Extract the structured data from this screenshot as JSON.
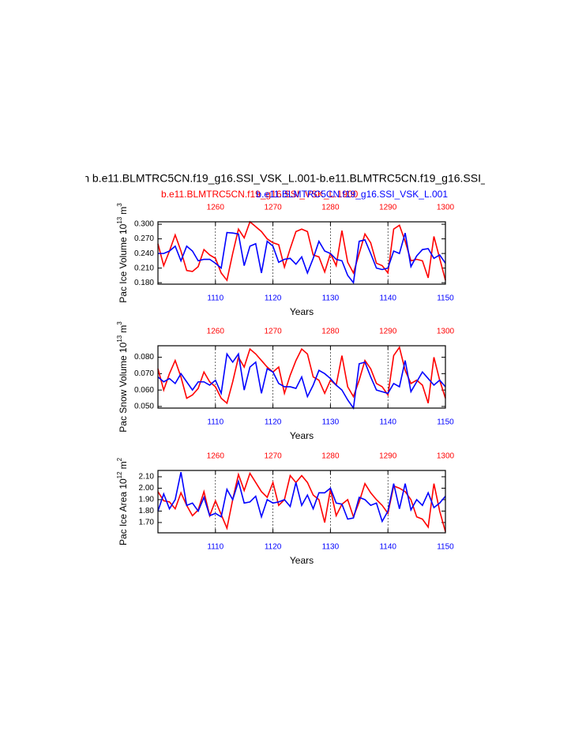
{
  "chart_data": [
    {
      "type": "line",
      "title": "n b.e11.BLMTRC5CN.f19_g16.SSI_VSK_L.001-b.e11.BLMTRC5CN.f19_g16.SSI_",
      "xlabel": "Years",
      "ylabel": {
        "text": "Pac Ice Volume 10",
        "exp": "13",
        "unit": "m",
        "unit_exp": "3"
      },
      "xlim": [
        1100,
        1150
      ],
      "xticks": [
        1110,
        1120,
        1130,
        1140,
        1150
      ],
      "x2lim": [
        1250,
        1300
      ],
      "x2ticks": [
        1260,
        1270,
        1280,
        1290,
        1300
      ],
      "ylim": [
        0.177,
        0.305
      ],
      "yticks": [
        {
          "value": 0.18,
          "label": "0.180"
        },
        {
          "value": 0.21,
          "label": "0.210"
        },
        {
          "value": 0.24,
          "label": "0.240"
        },
        {
          "value": 0.27,
          "label": "0.270"
        },
        {
          "value": 0.3,
          "label": "0.300"
        }
      ],
      "grid": "dashed",
      "x": [
        1100,
        1101,
        1102,
        1103,
        1104,
        1105,
        1106,
        1107,
        1108,
        1109,
        1110,
        1111,
        1112,
        1113,
        1114,
        1115,
        1116,
        1117,
        1118,
        1119,
        1120,
        1121,
        1122,
        1123,
        1124,
        1125,
        1126,
        1127,
        1128,
        1129,
        1130,
        1131,
        1132,
        1133,
        1134,
        1135,
        1136,
        1137,
        1138,
        1139,
        1140,
        1141,
        1142,
        1143,
        1144,
        1145,
        1146,
        1147,
        1148,
        1149,
        1150
      ],
      "x2": [
        1250,
        1251,
        1252,
        1253,
        1254,
        1255,
        1256,
        1257,
        1258,
        1259,
        1260,
        1261,
        1262,
        1263,
        1264,
        1265,
        1266,
        1267,
        1268,
        1269,
        1270,
        1271,
        1272,
        1273,
        1274,
        1275,
        1276,
        1277,
        1278,
        1279,
        1280,
        1281,
        1282,
        1283,
        1284,
        1285,
        1286,
        1287,
        1288,
        1289,
        1290,
        1291,
        1292,
        1293,
        1294,
        1295,
        1296,
        1297,
        1298,
        1299,
        1300
      ],
      "series": [
        {
          "name": "b.e11.BLMTRC5CN.f19_g16.SSI_VSK_L.1900",
          "color": "#ff0000",
          "axis": "x2",
          "values": [
            0.26,
            0.215,
            0.245,
            0.278,
            0.245,
            0.205,
            0.203,
            0.213,
            0.248,
            0.237,
            0.23,
            0.2,
            0.185,
            0.24,
            0.29,
            0.272,
            0.305,
            0.295,
            0.285,
            0.27,
            0.262,
            0.258,
            0.212,
            0.25,
            0.285,
            0.29,
            0.285,
            0.237,
            0.233,
            0.202,
            0.24,
            0.215,
            0.287,
            0.222,
            0.2,
            0.24,
            0.28,
            0.262,
            0.22,
            0.215,
            0.2,
            0.29,
            0.298,
            0.265,
            0.225,
            0.228,
            0.225,
            0.19,
            0.275,
            0.23,
            0.185
          ]
        },
        {
          "name": "b.e11.BLMTRC5CN.f19_g16.SSI_VSK_L.001",
          "color": "#0000ff",
          "axis": "x",
          "values": [
            0.24,
            0.24,
            0.245,
            0.255,
            0.225,
            0.255,
            0.245,
            0.225,
            0.228,
            0.228,
            0.22,
            0.21,
            0.283,
            0.282,
            0.28,
            0.215,
            0.255,
            0.26,
            0.2,
            0.265,
            0.255,
            0.222,
            0.228,
            0.23,
            0.218,
            0.233,
            0.2,
            0.23,
            0.265,
            0.245,
            0.24,
            0.228,
            0.225,
            0.195,
            0.18,
            0.265,
            0.268,
            0.24,
            0.21,
            0.207,
            0.21,
            0.245,
            0.24,
            0.282,
            0.213,
            0.235,
            0.248,
            0.25,
            0.23,
            0.237,
            0.22
          ]
        }
      ]
    },
    {
      "type": "line",
      "xlabel": "Years",
      "ylabel": {
        "text": "Pac Snow Volume 10",
        "exp": "13",
        "unit": "m",
        "unit_exp": "3"
      },
      "xlim": [
        1100,
        1150
      ],
      "xticks": [
        1110,
        1120,
        1130,
        1140,
        1150
      ],
      "x2lim": [
        1250,
        1300
      ],
      "x2ticks": [
        1260,
        1270,
        1280,
        1290,
        1300
      ],
      "ylim": [
        0.049,
        0.087
      ],
      "yticks": [
        {
          "value": 0.05,
          "label": "0.050"
        },
        {
          "value": 0.06,
          "label": "0.060"
        },
        {
          "value": 0.07,
          "label": "0.070"
        },
        {
          "value": 0.08,
          "label": "0.080"
        }
      ],
      "grid": "dashed",
      "x": [
        1100,
        1101,
        1102,
        1103,
        1104,
        1105,
        1106,
        1107,
        1108,
        1109,
        1110,
        1111,
        1112,
        1113,
        1114,
        1115,
        1116,
        1117,
        1118,
        1119,
        1120,
        1121,
        1122,
        1123,
        1124,
        1125,
        1126,
        1127,
        1128,
        1129,
        1130,
        1131,
        1132,
        1133,
        1134,
        1135,
        1136,
        1137,
        1138,
        1139,
        1140,
        1141,
        1142,
        1143,
        1144,
        1145,
        1146,
        1147,
        1148,
        1149,
        1150
      ],
      "x2": [
        1250,
        1251,
        1252,
        1253,
        1254,
        1255,
        1256,
        1257,
        1258,
        1259,
        1260,
        1261,
        1262,
        1263,
        1264,
        1265,
        1266,
        1267,
        1268,
        1269,
        1270,
        1271,
        1272,
        1273,
        1274,
        1275,
        1276,
        1277,
        1278,
        1279,
        1280,
        1281,
        1282,
        1283,
        1284,
        1285,
        1286,
        1287,
        1288,
        1289,
        1290,
        1291,
        1292,
        1293,
        1294,
        1295,
        1296,
        1297,
        1298,
        1299,
        1300
      ],
      "series": [
        {
          "color": "#ff0000",
          "axis": "x2",
          "values": [
            0.073,
            0.06,
            0.07,
            0.078,
            0.068,
            0.055,
            0.057,
            0.061,
            0.071,
            0.065,
            0.062,
            0.055,
            0.052,
            0.065,
            0.08,
            0.074,
            0.085,
            0.082,
            0.078,
            0.074,
            0.071,
            0.074,
            0.058,
            0.069,
            0.078,
            0.085,
            0.082,
            0.068,
            0.066,
            0.058,
            0.066,
            0.063,
            0.081,
            0.062,
            0.056,
            0.066,
            0.078,
            0.073,
            0.064,
            0.062,
            0.057,
            0.081,
            0.086,
            0.072,
            0.064,
            0.066,
            0.063,
            0.052,
            0.08,
            0.066,
            0.055
          ]
        },
        {
          "color": "#0000ff",
          "axis": "x",
          "values": [
            0.068,
            0.065,
            0.067,
            0.064,
            0.07,
            0.065,
            0.06,
            0.065,
            0.065,
            0.063,
            0.066,
            0.058,
            0.082,
            0.077,
            0.082,
            0.06,
            0.074,
            0.077,
            0.058,
            0.073,
            0.071,
            0.064,
            0.062,
            0.062,
            0.061,
            0.068,
            0.056,
            0.063,
            0.072,
            0.07,
            0.067,
            0.063,
            0.06,
            0.054,
            0.049,
            0.076,
            0.077,
            0.068,
            0.06,
            0.059,
            0.058,
            0.064,
            0.062,
            0.078,
            0.059,
            0.065,
            0.071,
            0.067,
            0.063,
            0.066,
            0.062
          ]
        }
      ]
    },
    {
      "type": "line",
      "xlabel": "Years",
      "ylabel": {
        "text": "Pac Ice Area 10",
        "exp": "12",
        "unit": "m",
        "unit_exp": "2"
      },
      "xlim": [
        1100,
        1150
      ],
      "xticks": [
        1110,
        1120,
        1130,
        1140,
        1150
      ],
      "x2lim": [
        1250,
        1300
      ],
      "x2ticks": [
        1260,
        1270,
        1280,
        1290,
        1300
      ],
      "ylim": [
        1.61,
        2.155
      ],
      "yticks": [
        {
          "value": 1.7,
          "label": "1.70"
        },
        {
          "value": 1.8,
          "label": "1.80"
        },
        {
          "value": 1.9,
          "label": "1.90"
        },
        {
          "value": 2.0,
          "label": "2.00"
        },
        {
          "value": 2.1,
          "label": "2.10"
        }
      ],
      "grid": "dashed",
      "x": [
        1100,
        1101,
        1102,
        1103,
        1104,
        1105,
        1106,
        1107,
        1108,
        1109,
        1110,
        1111,
        1112,
        1113,
        1114,
        1115,
        1116,
        1117,
        1118,
        1119,
        1120,
        1121,
        1122,
        1123,
        1124,
        1125,
        1126,
        1127,
        1128,
        1129,
        1130,
        1131,
        1132,
        1133,
        1134,
        1135,
        1136,
        1137,
        1138,
        1139,
        1140,
        1141,
        1142,
        1143,
        1144,
        1145,
        1146,
        1147,
        1148,
        1149,
        1150
      ],
      "x2": [
        1250,
        1251,
        1252,
        1253,
        1254,
        1255,
        1256,
        1257,
        1258,
        1259,
        1260,
        1261,
        1262,
        1263,
        1264,
        1265,
        1266,
        1267,
        1268,
        1269,
        1270,
        1271,
        1272,
        1273,
        1274,
        1275,
        1276,
        1277,
        1278,
        1279,
        1280,
        1281,
        1282,
        1283,
        1284,
        1285,
        1286,
        1287,
        1288,
        1289,
        1290,
        1291,
        1292,
        1293,
        1294,
        1295,
        1296,
        1297,
        1298,
        1299,
        1300
      ],
      "series": [
        {
          "color": "#ff0000",
          "axis": "x2",
          "values": [
            1.97,
            1.89,
            1.88,
            1.82,
            1.96,
            1.85,
            1.76,
            1.81,
            1.97,
            1.76,
            1.89,
            1.77,
            1.65,
            1.9,
            2.12,
            1.98,
            2.13,
            2.05,
            1.97,
            1.92,
            2.05,
            1.85,
            1.9,
            2.11,
            2.05,
            2.11,
            2.05,
            1.94,
            1.9,
            1.7,
            1.99,
            1.76,
            1.86,
            1.9,
            1.75,
            1.88,
            2.04,
            1.96,
            1.9,
            1.85,
            1.78,
            2.02,
            2.0,
            1.97,
            1.9,
            1.75,
            1.73,
            1.66,
            2.04,
            1.8,
            1.62
          ]
        },
        {
          "color": "#0000ff",
          "axis": "x",
          "values": [
            1.8,
            1.95,
            1.82,
            1.9,
            2.14,
            1.85,
            1.87,
            1.8,
            1.92,
            1.76,
            1.78,
            1.75,
            1.99,
            1.9,
            2.06,
            1.87,
            1.88,
            1.93,
            1.75,
            1.9,
            1.87,
            1.88,
            1.9,
            1.84,
            2.05,
            1.85,
            1.94,
            1.82,
            1.96,
            1.96,
            2.0,
            1.87,
            1.86,
            1.73,
            1.74,
            1.92,
            1.9,
            1.85,
            1.87,
            1.71,
            1.8,
            2.04,
            1.82,
            2.04,
            1.81,
            1.9,
            1.85,
            1.96,
            1.83,
            1.87,
            1.93
          ]
        }
      ]
    }
  ]
}
